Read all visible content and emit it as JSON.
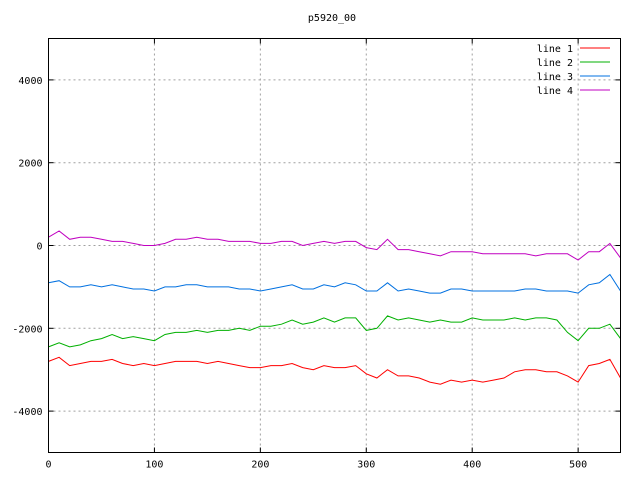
{
  "chart_data": {
    "type": "line",
    "title": "p5920_00",
    "xlabel": "",
    "ylabel": "",
    "xlim": [
      0,
      540
    ],
    "ylim": [
      -5000,
      5000
    ],
    "xticks": [
      0,
      100,
      200,
      300,
      400,
      500
    ],
    "yticks": [
      -4000,
      -2000,
      0,
      2000,
      4000
    ],
    "grid": true,
    "legend_position": "top-right",
    "series": [
      {
        "name": "line 1",
        "color": "#ff0000",
        "x": [
          0,
          10,
          20,
          30,
          40,
          50,
          60,
          70,
          80,
          90,
          100,
          110,
          120,
          130,
          140,
          150,
          160,
          170,
          180,
          190,
          200,
          210,
          220,
          230,
          240,
          250,
          260,
          270,
          280,
          290,
          300,
          310,
          320,
          330,
          340,
          350,
          360,
          370,
          380,
          390,
          400,
          410,
          420,
          430,
          440,
          450,
          460,
          470,
          480,
          490,
          500,
          510,
          520,
          530,
          540
        ],
        "y": [
          -2800,
          -2700,
          -2900,
          -2850,
          -2800,
          -2800,
          -2750,
          -2850,
          -2900,
          -2850,
          -2900,
          -2850,
          -2800,
          -2800,
          -2800,
          -2850,
          -2800,
          -2850,
          -2900,
          -2950,
          -2950,
          -2900,
          -2900,
          -2850,
          -2950,
          -3000,
          -2900,
          -2950,
          -2950,
          -2900,
          -3100,
          -3200,
          -3000,
          -3150,
          -3150,
          -3200,
          -3300,
          -3350,
          -3250,
          -3300,
          -3250,
          -3300,
          -3250,
          -3200,
          -3050,
          -3000,
          -3000,
          -3050,
          -3050,
          -3150,
          -3300,
          -2900,
          -2850,
          -2750,
          -3200
        ]
      },
      {
        "name": "line 2",
        "color": "#00b000",
        "x": [
          0,
          10,
          20,
          30,
          40,
          50,
          60,
          70,
          80,
          90,
          100,
          110,
          120,
          130,
          140,
          150,
          160,
          170,
          180,
          190,
          200,
          210,
          220,
          230,
          240,
          250,
          260,
          270,
          280,
          290,
          300,
          310,
          320,
          330,
          340,
          350,
          360,
          370,
          380,
          390,
          400,
          410,
          420,
          430,
          440,
          450,
          460,
          470,
          480,
          490,
          500,
          510,
          520,
          530,
          540
        ],
        "y": [
          -2450,
          -2350,
          -2450,
          -2400,
          -2300,
          -2250,
          -2150,
          -2250,
          -2200,
          -2250,
          -2300,
          -2150,
          -2100,
          -2100,
          -2050,
          -2100,
          -2050,
          -2050,
          -2000,
          -2050,
          -1950,
          -1950,
          -1900,
          -1800,
          -1900,
          -1850,
          -1750,
          -1850,
          -1750,
          -1750,
          -2050,
          -2000,
          -1700,
          -1800,
          -1750,
          -1800,
          -1850,
          -1800,
          -1850,
          -1850,
          -1750,
          -1800,
          -1800,
          -1800,
          -1750,
          -1800,
          -1750,
          -1750,
          -1800,
          -2100,
          -2300,
          -2000,
          -2000,
          -1900,
          -2250
        ]
      },
      {
        "name": "line 3",
        "color": "#0070e0",
        "x": [
          0,
          10,
          20,
          30,
          40,
          50,
          60,
          70,
          80,
          90,
          100,
          110,
          120,
          130,
          140,
          150,
          160,
          170,
          180,
          190,
          200,
          210,
          220,
          230,
          240,
          250,
          260,
          270,
          280,
          290,
          300,
          310,
          320,
          330,
          340,
          350,
          360,
          370,
          380,
          390,
          400,
          410,
          420,
          430,
          440,
          450,
          460,
          470,
          480,
          490,
          500,
          510,
          520,
          530,
          540
        ],
        "y": [
          -900,
          -850,
          -1000,
          -1000,
          -950,
          -1000,
          -950,
          -1000,
          -1050,
          -1050,
          -1100,
          -1000,
          -1000,
          -950,
          -950,
          -1000,
          -1000,
          -1000,
          -1050,
          -1050,
          -1100,
          -1050,
          -1000,
          -950,
          -1050,
          -1050,
          -950,
          -1000,
          -900,
          -950,
          -1100,
          -1100,
          -900,
          -1100,
          -1050,
          -1100,
          -1150,
          -1150,
          -1050,
          -1050,
          -1100,
          -1100,
          -1100,
          -1100,
          -1100,
          -1050,
          -1050,
          -1100,
          -1100,
          -1100,
          -1150,
          -950,
          -900,
          -700,
          -1100
        ]
      },
      {
        "name": "line 4",
        "color": "#c000c0",
        "x": [
          0,
          10,
          20,
          30,
          40,
          50,
          60,
          70,
          80,
          90,
          100,
          110,
          120,
          130,
          140,
          150,
          160,
          170,
          180,
          190,
          200,
          210,
          220,
          230,
          240,
          250,
          260,
          270,
          280,
          290,
          300,
          310,
          320,
          330,
          340,
          350,
          360,
          370,
          380,
          390,
          400,
          410,
          420,
          430,
          440,
          450,
          460,
          470,
          480,
          490,
          500,
          510,
          520,
          530,
          540
        ],
        "y": [
          200,
          350,
          150,
          200,
          200,
          150,
          100,
          100,
          50,
          0,
          0,
          50,
          150,
          150,
          200,
          150,
          150,
          100,
          100,
          100,
          50,
          50,
          100,
          100,
          0,
          50,
          100,
          50,
          100,
          100,
          -50,
          -100,
          150,
          -100,
          -100,
          -150,
          -200,
          -250,
          -150,
          -150,
          -150,
          -200,
          -200,
          -200,
          -200,
          -200,
          -250,
          -200,
          -200,
          -200,
          -350,
          -150,
          -150,
          50,
          -300
        ]
      }
    ]
  }
}
